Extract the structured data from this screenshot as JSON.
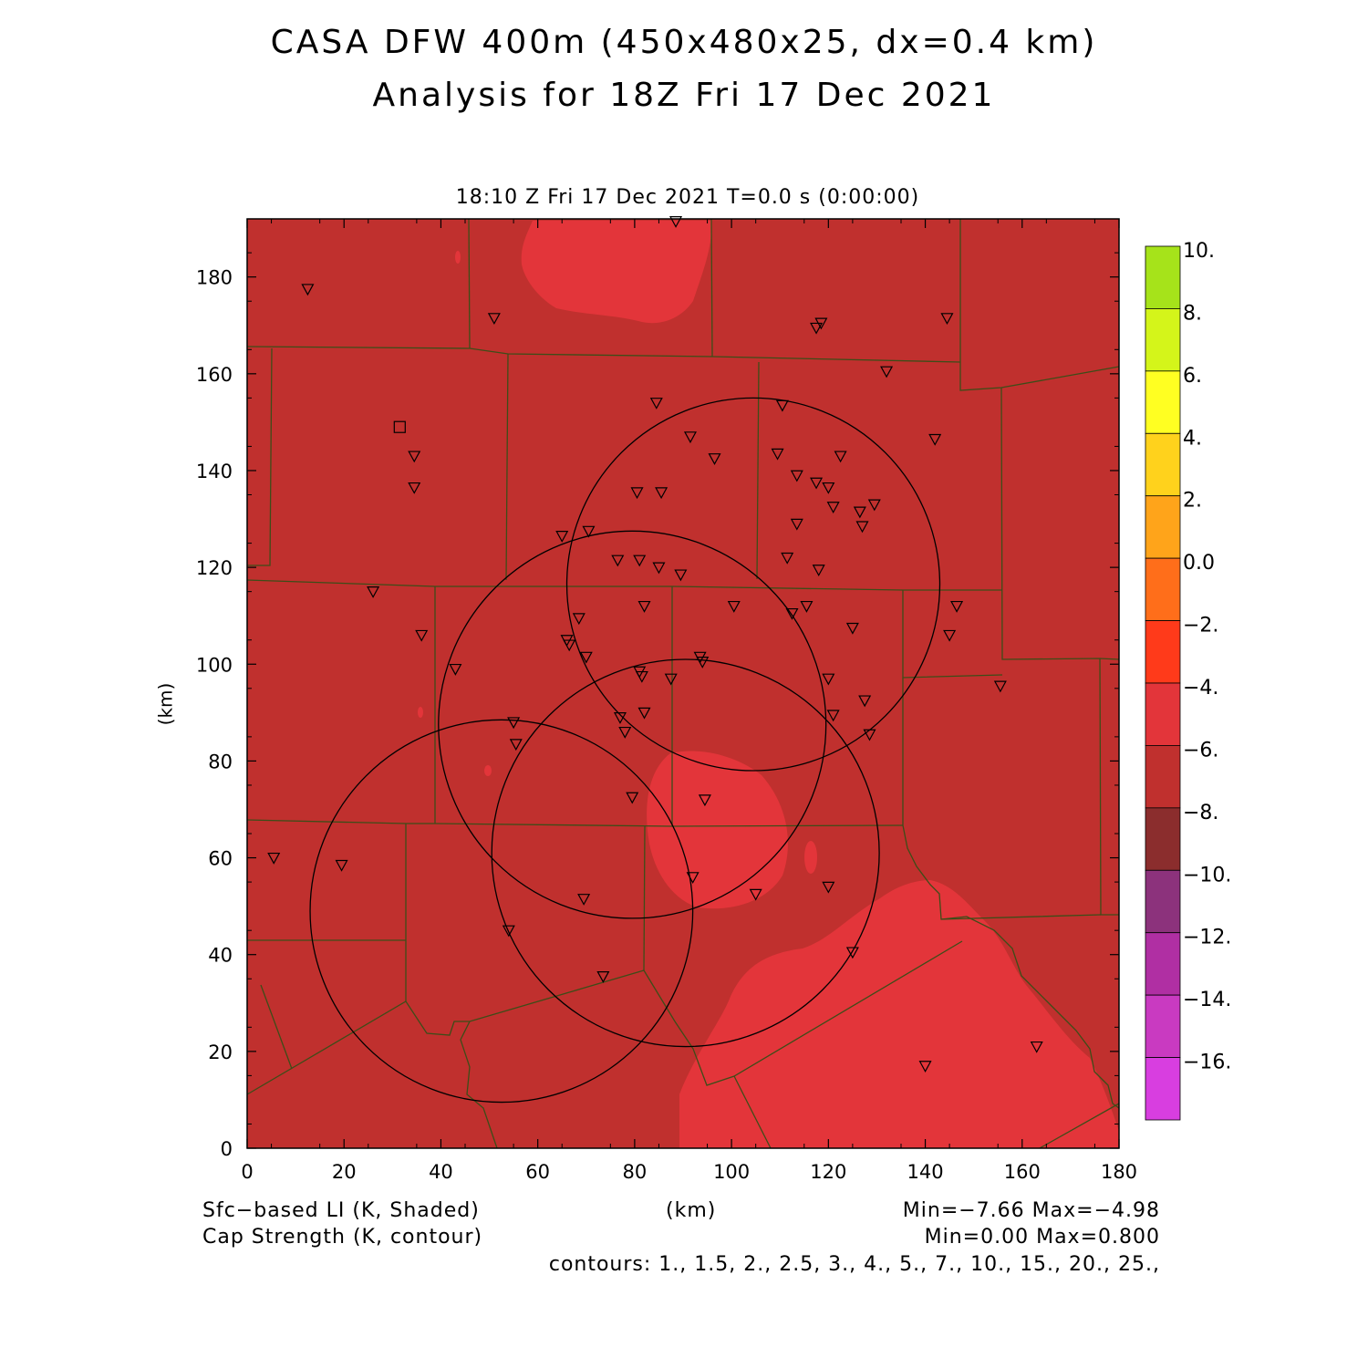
{
  "header": {
    "title_line1": "CASA DFW 400m (450x480x25, dx=0.4 km)",
    "title_line2": "Analysis for 18Z Fri 17 Dec 2021",
    "subtitle": "18:10 Z Fri 17 Dec 2021    T=0.0 s (0:00:00)"
  },
  "axes": {
    "x_label": "(km)",
    "y_label": "(km)",
    "x_range": [
      0,
      180
    ],
    "y_range": [
      0,
      192
    ],
    "x_ticks": [
      "0",
      "20",
      "40",
      "60",
      "80",
      "100",
      "120",
      "140",
      "160",
      "180"
    ],
    "y_ticks": [
      "0",
      "20",
      "40",
      "60",
      "80",
      "100",
      "120",
      "140",
      "160",
      "180"
    ]
  },
  "colorbar": {
    "labels": [
      "10.",
      "8.",
      "6.",
      "4.",
      "2.",
      "0.0",
      "−2.",
      "−4.",
      "−6.",
      "−8.",
      "−10.",
      "−12.",
      "−14.",
      "−16."
    ],
    "colors": [
      "#a6e31a",
      "#d4f51a",
      "#ffff22",
      "#ffd21c",
      "#ffa41a",
      "#ff6e1a",
      "#ff3a1a",
      "#e3353a",
      "#c0302e",
      "#8b2d2d",
      "#8c327c",
      "#b02fa3",
      "#c93ac1",
      "#d83ee0"
    ]
  },
  "fields": {
    "background_color": "#c0302e",
    "warm_region_color": "#e3353a",
    "county_line_color": "#3d4d18",
    "symbol_color": "#000000"
  },
  "footer": {
    "left_line1": "Sfc−based LI (K, Shaded)",
    "left_line2": "Cap Strength (K, contour)",
    "center": "(km)",
    "right_line1": "Min=−7.66 Max=−4.98",
    "right_line2": "Min=0.00 Max=0.800",
    "right_line3": "contours: 1., 1.5, 2., 2.5, 3., 4., 5., 7., 10., 15., 20., 25.,"
  },
  "chart_data": {
    "type": "map",
    "radar_range_circles_km": [
      {
        "center": [
          104.5,
          116.5
        ],
        "radius": 38.5
      },
      {
        "center": [
          79.5,
          87.5
        ],
        "radius": 40.0
      },
      {
        "center": [
          52.5,
          49.0
        ],
        "radius": 39.5
      },
      {
        "center": [
          90.5,
          61.0
        ],
        "radius": 40.0
      }
    ],
    "stations_km": [
      [
        12.5,
        177.5
      ],
      [
        51,
        171.5
      ],
      [
        88.5,
        191.5
      ],
      [
        117.5,
        169.5
      ],
      [
        118.5,
        170.5
      ],
      [
        144.5,
        171.5
      ],
      [
        132,
        160.5
      ],
      [
        142,
        146.5
      ],
      [
        110.5,
        153.5
      ],
      [
        84.5,
        154
      ],
      [
        91.5,
        147
      ],
      [
        96.5,
        142.5
      ],
      [
        109.5,
        143.5
      ],
      [
        122.5,
        143
      ],
      [
        113.5,
        139
      ],
      [
        117.5,
        137.5
      ],
      [
        120,
        136.5
      ],
      [
        121,
        132.5
      ],
      [
        126.5,
        131.5
      ],
      [
        129.5,
        133
      ],
      [
        127,
        128.5
      ],
      [
        113.5,
        129
      ],
      [
        80.5,
        135.5
      ],
      [
        85.5,
        135.5
      ],
      [
        65,
        126.5
      ],
      [
        70.5,
        127.5
      ],
      [
        76.5,
        121.5
      ],
      [
        81,
        121.5
      ],
      [
        85,
        120
      ],
      [
        89.5,
        118.5
      ],
      [
        111.5,
        122
      ],
      [
        118,
        119.5
      ],
      [
        34.5,
        143
      ],
      [
        34.5,
        136.5
      ],
      [
        26,
        115
      ],
      [
        36,
        106
      ],
      [
        43,
        99
      ],
      [
        66.5,
        104
      ],
      [
        68.5,
        109.5
      ],
      [
        70,
        101.5
      ],
      [
        66,
        105
      ],
      [
        82,
        112
      ],
      [
        100.5,
        112
      ],
      [
        112.5,
        110.5
      ],
      [
        115.5,
        112
      ],
      [
        125,
        107.5
      ],
      [
        146.5,
        112
      ],
      [
        145,
        106
      ],
      [
        155.5,
        95.5
      ],
      [
        81,
        98.5
      ],
      [
        81.5,
        97.5
      ],
      [
        87.5,
        97
      ],
      [
        93.5,
        101.5
      ],
      [
        94,
        100.5
      ],
      [
        120,
        97
      ],
      [
        121,
        89.5
      ],
      [
        127.5,
        92.5
      ],
      [
        128.5,
        85.5
      ],
      [
        77,
        89
      ],
      [
        78,
        86
      ],
      [
        82,
        90
      ],
      [
        55,
        88
      ],
      [
        55.5,
        83.5
      ],
      [
        79.5,
        72.5
      ],
      [
        94.5,
        72
      ],
      [
        5.5,
        60
      ],
      [
        19.5,
        58.5
      ],
      [
        69.5,
        51.5
      ],
      [
        92,
        56
      ],
      [
        105,
        52.5
      ],
      [
        120,
        54
      ],
      [
        54,
        45
      ],
      [
        125,
        40.5
      ],
      [
        73.5,
        35.5
      ],
      [
        140,
        17
      ],
      [
        163,
        21
      ]
    ],
    "square_markers_km": [
      [
        31.5,
        149
      ]
    ]
  }
}
